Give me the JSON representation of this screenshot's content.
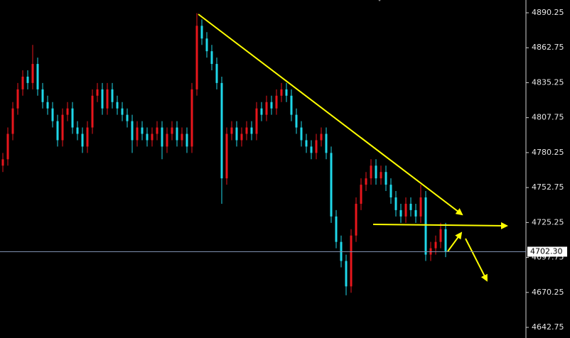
{
  "chart_data": {
    "type": "candlestick",
    "up_color": "#e8161c",
    "down_color": "#1fd8ea",
    "background": "#000000",
    "open": [
      4770,
      4775,
      4795,
      4815,
      4830,
      4840,
      4835,
      4850,
      4830,
      4820,
      4815,
      4805,
      4790,
      4810,
      4815,
      4800,
      4795,
      4785,
      4800,
      4825,
      4830,
      4815,
      4830,
      4820,
      4815,
      4810,
      4805,
      4790,
      4800,
      4795,
      4790,
      4795,
      4800,
      4785,
      4795,
      4800,
      4790,
      4795,
      4785,
      4830,
      4880,
      4870,
      4860,
      4850,
      4835,
      4760,
      4795,
      4800,
      4790,
      4795,
      4800,
      4795,
      4815,
      4810,
      4820,
      4815,
      4825,
      4830,
      4825,
      4810,
      4800,
      4790,
      4785,
      4780,
      4790,
      4795,
      4780,
      4730,
      4710,
      4695,
      4675,
      4715,
      4740,
      4755,
      4760,
      4770,
      4760,
      4765,
      4755,
      4745,
      4735,
      4730,
      4740,
      4735,
      4730,
      4745,
      4700,
      4705,
      4710,
      4720
    ],
    "high": [
      4780,
      4800,
      4820,
      4835,
      4845,
      4845,
      4865,
      4855,
      4835,
      4825,
      4820,
      4810,
      4815,
      4820,
      4820,
      4805,
      4800,
      4805,
      4830,
      4835,
      4835,
      4835,
      4835,
      4825,
      4820,
      4815,
      4810,
      4805,
      4805,
      4800,
      4800,
      4805,
      4805,
      4800,
      4805,
      4805,
      4800,
      4800,
      4835,
      4890,
      4885,
      4875,
      4865,
      4855,
      4840,
      4800,
      4805,
      4805,
      4800,
      4805,
      4805,
      4820,
      4820,
      4825,
      4825,
      4830,
      4835,
      4835,
      4830,
      4815,
      4805,
      4795,
      4790,
      4795,
      4800,
      4800,
      4785,
      4735,
      4715,
      4700,
      4720,
      4745,
      4760,
      4765,
      4775,
      4775,
      4770,
      4770,
      4760,
      4750,
      4740,
      4745,
      4745,
      4740,
      4755,
      4750,
      4710,
      4715,
      4725,
      4725
    ],
    "low": [
      4765,
      4770,
      4790,
      4810,
      4825,
      4830,
      4830,
      4825,
      4815,
      4810,
      4800,
      4785,
      4785,
      4805,
      4795,
      4790,
      4780,
      4780,
      4795,
      4820,
      4810,
      4810,
      4815,
      4810,
      4805,
      4800,
      4780,
      4785,
      4790,
      4785,
      4785,
      4790,
      4775,
      4780,
      4790,
      4785,
      4785,
      4780,
      4780,
      4825,
      4865,
      4855,
      4845,
      4830,
      4740,
      4755,
      4790,
      4785,
      4785,
      4790,
      4790,
      4790,
      4805,
      4805,
      4810,
      4810,
      4820,
      4820,
      4805,
      4795,
      4785,
      4780,
      4775,
      4775,
      4785,
      4775,
      4725,
      4705,
      4690,
      4668,
      4670,
      4710,
      4735,
      4750,
      4755,
      4755,
      4755,
      4750,
      4740,
      4730,
      4725,
      4725,
      4730,
      4725,
      4725,
      4695,
      4695,
      4700,
      4705,
      4698
    ],
    "close": [
      4775,
      4795,
      4815,
      4830,
      4840,
      4835,
      4850,
      4830,
      4820,
      4815,
      4805,
      4790,
      4810,
      4815,
      4800,
      4795,
      4785,
      4800,
      4825,
      4830,
      4815,
      4830,
      4820,
      4815,
      4810,
      4805,
      4790,
      4800,
      4795,
      4790,
      4795,
      4800,
      4785,
      4795,
      4800,
      4790,
      4795,
      4785,
      4830,
      4880,
      4870,
      4860,
      4850,
      4835,
      4760,
      4795,
      4800,
      4790,
      4795,
      4800,
      4795,
      4815,
      4810,
      4820,
      4815,
      4825,
      4830,
      4825,
      4810,
      4800,
      4790,
      4785,
      4780,
      4790,
      4795,
      4780,
      4730,
      4710,
      4695,
      4675,
      4715,
      4740,
      4755,
      4760,
      4770,
      4760,
      4765,
      4755,
      4745,
      4735,
      4730,
      4740,
      4735,
      4730,
      4745,
      4700,
      4705,
      4710,
      4720,
      4702.3
    ],
    "ylim": [
      4634.4,
      4900.3
    ],
    "yticks": [
      4890.25,
      4862.75,
      4835.25,
      4807.75,
      4780.25,
      4752.75,
      4725.25,
      4697.75,
      4670.25,
      4642.75
    ],
    "last_price": {
      "value": 4702.3,
      "label": "4702.30"
    }
  }
}
